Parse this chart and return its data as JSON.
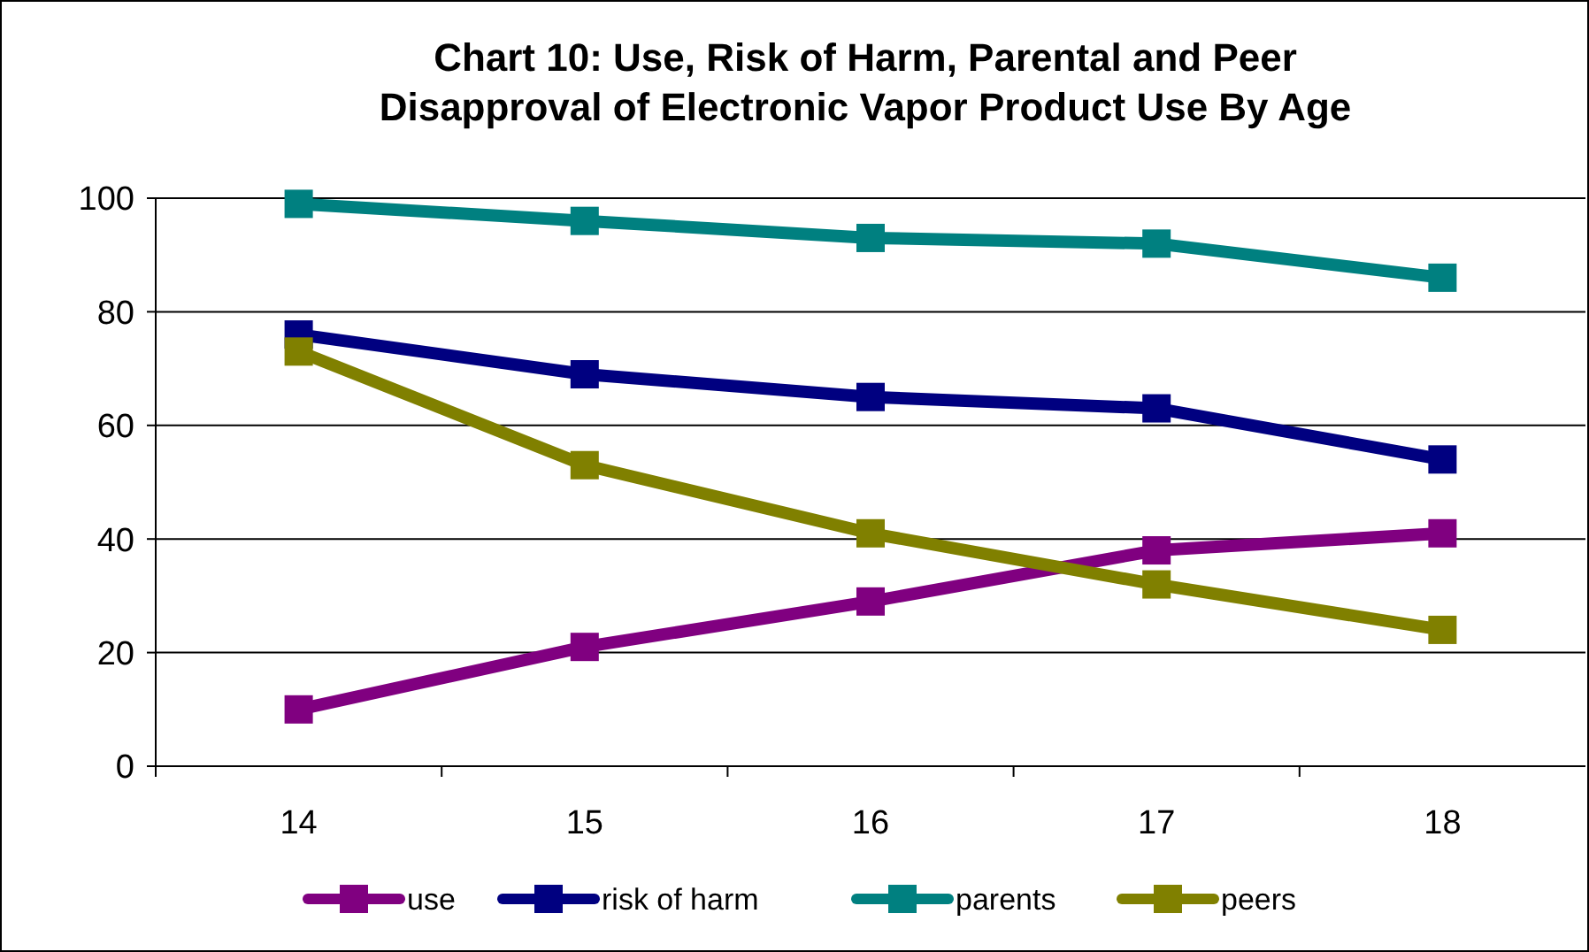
{
  "chart_data": {
    "type": "line",
    "title": "Chart 10:  Use, Risk of Harm, Parental and Peer\nDisapproval of Electronic Vapor Product Use By  Age",
    "categories": [
      "14",
      "15",
      "16",
      "17",
      "18"
    ],
    "ylim": [
      0,
      100
    ],
    "yticks": [
      0,
      20,
      40,
      60,
      80,
      100
    ],
    "grid": "y",
    "legend": "bottom",
    "marker": "square",
    "line_style": "solid",
    "series": [
      {
        "name": "use",
        "color": "#800080",
        "values": [
          10,
          21,
          29,
          38,
          41
        ]
      },
      {
        "name": "risk of harm",
        "color": "#000080",
        "values": [
          76,
          69,
          65,
          63,
          54
        ]
      },
      {
        "name": "parents",
        "color": "#008080",
        "values": [
          99,
          96,
          93,
          92,
          86
        ]
      },
      {
        "name": "peers",
        "color": "#808000",
        "values": [
          73,
          53,
          41,
          32,
          24
        ]
      }
    ]
  }
}
